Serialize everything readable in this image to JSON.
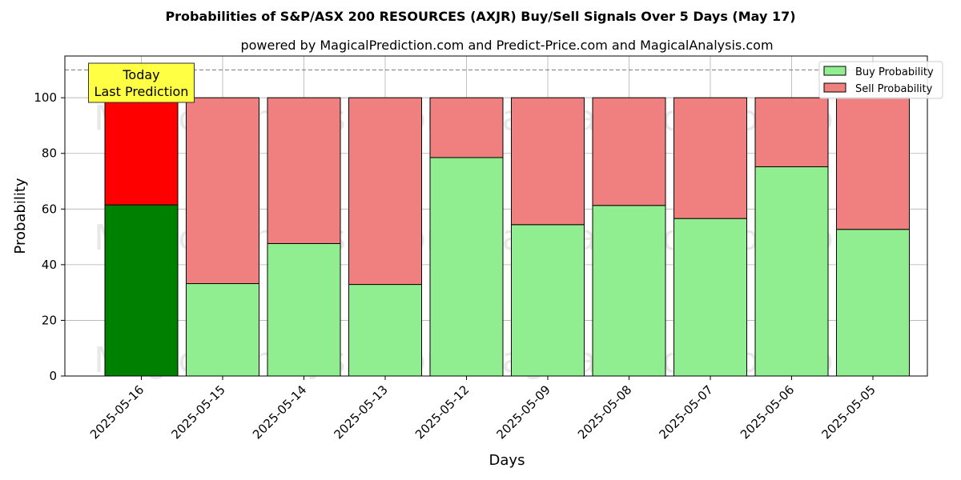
{
  "chart_data": {
    "type": "bar",
    "stacked": true,
    "title": "Probabilities of S&P/ASX 200 RESOURCES (AXJR) Buy/Sell Signals Over 5 Days (May 17)",
    "subtitle": "powered by MagicalPrediction.com and Predict-Price.com and MagicalAnalysis.com",
    "xlabel": "Days",
    "ylabel": "Probability",
    "ylim": [
      0,
      115
    ],
    "yticks": [
      0,
      20,
      40,
      60,
      80,
      100
    ],
    "grid": true,
    "legend_position": "top-right",
    "reference_line": 110,
    "categories": [
      "2025-05-16",
      "2025-05-15",
      "2025-05-14",
      "2025-05-13",
      "2025-05-12",
      "2025-05-09",
      "2025-05-08",
      "2025-05-07",
      "2025-05-06",
      "2025-05-05"
    ],
    "series": [
      {
        "name": "Buy Probability",
        "values": [
          61.5,
          33.2,
          47.6,
          32.9,
          78.5,
          54.4,
          61.3,
          56.6,
          75.2,
          52.7
        ]
      },
      {
        "name": "Sell Probability",
        "values": [
          38.5,
          66.8,
          52.4,
          67.1,
          21.5,
          45.6,
          38.7,
          43.4,
          24.8,
          47.3
        ]
      }
    ],
    "colors": {
      "buy": "#90EE90",
      "sell": "#F08080",
      "buy_highlight": "#008000",
      "sell_highlight": "#FF0000",
      "annotation_bg": "#FFFF44"
    },
    "highlight_index": 0,
    "annotation": [
      "Today",
      "Last Prediction"
    ],
    "watermarks": [
      "MagicalAnalysis.com",
      "MagicalPrediction.com"
    ]
  }
}
